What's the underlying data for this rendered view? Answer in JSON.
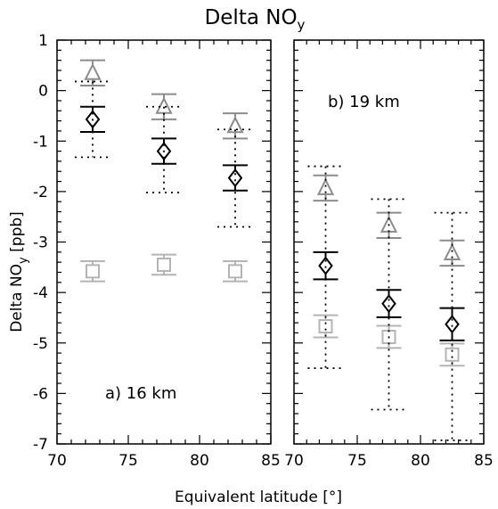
{
  "chart_data": {
    "type": "scatter",
    "title": "Delta NO",
    "title_subscript": "y",
    "xlabel": "Equivalent latitude [°]",
    "ylabel": "Delta NO",
    "ylabel_subscript": "y",
    "ylabel_unit": " [ppb]",
    "ylim": [
      -7,
      1
    ],
    "grid": false,
    "colors": {
      "black": "#000000",
      "dark_gray": "#8c8c8c",
      "light_gray": "#b4b4b4"
    },
    "panels": [
      {
        "label": "a) 16 km",
        "xlim": [
          70,
          85
        ],
        "x_ticks": [
          "70",
          "75",
          "80",
          "85"
        ],
        "y_ticks": [
          "1",
          "0",
          "-1",
          "-2",
          "-3",
          "-4",
          "-5",
          "-6",
          "-7"
        ],
        "series": [
          {
            "marker": "triangle",
            "color": "#8c8c8c",
            "x": [
              72.5,
              77.5,
              82.5
            ],
            "y": [
              0.35,
              -0.32,
              -0.7
            ],
            "err": [
              0.25,
              0.25,
              0.25
            ]
          },
          {
            "marker": "diamond",
            "color": "#000000",
            "x": [
              72.5,
              77.5,
              82.5
            ],
            "y": [
              -0.57,
              -1.2,
              -1.73
            ],
            "err": [
              0.25,
              0.25,
              0.25
            ]
          },
          {
            "marker": "square",
            "color": "#b4b4b4",
            "x": [
              72.5,
              77.5,
              82.5
            ],
            "y": [
              -3.58,
              -3.45,
              -3.58
            ],
            "err": [
              0.2,
              0.2,
              0.2
            ]
          },
          {
            "marker": "range",
            "color": "#000000",
            "x": [
              72.5,
              77.5,
              82.5
            ],
            "high": [
              0.18,
              -0.32,
              -0.77
            ],
            "low": [
              -1.32,
              -2.02,
              -2.7
            ]
          }
        ]
      },
      {
        "label": "b) 19 km",
        "xlim": [
          70,
          85
        ],
        "x_ticks": [
          "70",
          "75",
          "80",
          "85"
        ],
        "y_ticks": [],
        "series": [
          {
            "marker": "triangle",
            "color": "#8c8c8c",
            "x": [
              72.5,
              77.5,
              82.5
            ],
            "y": [
              -1.93,
              -2.67,
              -3.22
            ],
            "err": [
              0.25,
              0.25,
              0.25
            ]
          },
          {
            "marker": "diamond",
            "color": "#000000",
            "x": [
              72.5,
              77.5,
              82.5
            ],
            "y": [
              -3.47,
              -4.22,
              -4.63
            ],
            "err": [
              0.27,
              0.27,
              0.32
            ]
          },
          {
            "marker": "square",
            "color": "#b4b4b4",
            "x": [
              72.5,
              77.5,
              82.5
            ],
            "y": [
              -4.67,
              -4.88,
              -5.23
            ],
            "err": [
              0.22,
              0.22,
              0.22
            ]
          },
          {
            "marker": "range",
            "color": "#000000",
            "x": [
              72.5,
              77.5,
              82.5
            ],
            "high": [
              -1.5,
              -2.15,
              -2.42
            ],
            "low": [
              -5.5,
              -6.32,
              -6.93
            ]
          }
        ]
      }
    ]
  }
}
